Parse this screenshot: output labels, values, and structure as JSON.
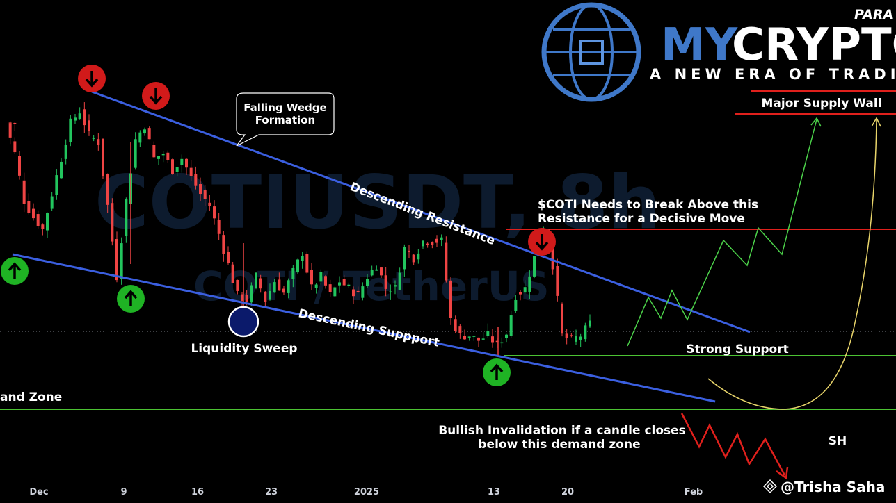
{
  "watermark": {
    "symbol": "COTIUSDT, 8h",
    "pair": "COTI / TetherUS"
  },
  "brand": {
    "top": "PARA",
    "name_a": "MY",
    "name_b": "CRYPTO",
    "tagline": "A NEW ERA OF TRADIN"
  },
  "annotations": {
    "major_supply_wall": "Major Supply Wall",
    "falling_wedge": "Falling Wedge\nFormation",
    "descending_resistance": "Descending Resistance",
    "descending_support": "Descending Suppport",
    "liquidity_sweep": "Liquidity Sweep",
    "break_above_line1": "$COTI Needs to Break Above this",
    "break_above_line2": "Resistance for a Decisive Move",
    "strong_support": "Strong Support",
    "demand_zone": "and Zone",
    "invalidation_line1": "Bullish Invalidation if a candle closes",
    "invalidation_line2": "below this demand zone",
    "sh": "SH",
    "author": "@Trisha Saha"
  },
  "colors": {
    "bull": "#22c55e",
    "bear": "#ef4444",
    "trend": "#3b5fe0",
    "support": "#4cc233",
    "supply": "#e0201c",
    "projection": "#4cd34a",
    "curve": "#e8d46a",
    "up_marker": "#1fb324",
    "down_marker": "#d11a1a",
    "sweep": "#0b1a6b"
  },
  "chart_data": {
    "type": "candlestick",
    "x_ticks": [
      "Dec",
      "9",
      "16",
      "23",
      "2025",
      "13",
      "20",
      "Feb"
    ],
    "price_path": [
      0.95,
      0.82,
      0.62,
      0.55,
      0.5,
      0.65,
      0.8,
      0.95,
      1.0,
      0.9,
      0.87,
      0.6,
      0.3,
      0.62,
      0.88,
      0.94,
      0.8,
      0.82,
      0.75,
      0.8,
      0.72,
      0.65,
      0.6,
      0.48,
      0.35,
      0.22,
      0.2,
      0.3,
      0.2,
      0.28,
      0.23,
      0.32,
      0.4,
      0.25,
      0.3,
      0.22,
      0.28,
      0.25,
      0.22,
      0.3,
      0.35,
      0.25,
      0.25,
      0.42,
      0.38,
      0.45,
      0.45,
      0.45,
      0.12,
      0.05,
      0.05,
      0.03,
      0.05,
      0.01,
      0.06,
      0.22,
      0.25,
      0.38,
      0.5,
      0.35,
      0.05,
      0.03,
      0.05,
      0.1
    ],
    "markers": [
      "down",
      "down",
      "down",
      "up",
      "up",
      "up"
    ],
    "events": [
      "liquidity_sweep"
    ],
    "levels": [
      "major_supply_wall",
      "resistance",
      "strong_support",
      "demand_zone"
    ],
    "projection": "bullish zig-zag toward Major Supply Wall; bearish path below demand zone"
  }
}
